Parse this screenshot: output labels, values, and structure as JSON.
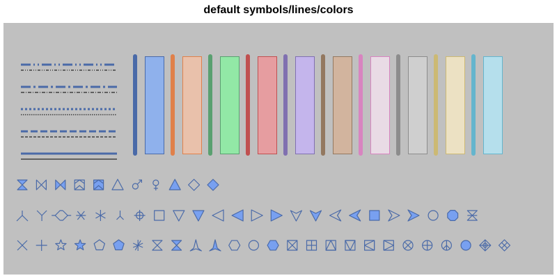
{
  "title": "default symbols/lines/colors",
  "palette": {
    "background": "#c0c0c0",
    "stroke_color": "#4a6aa8",
    "fill_color": "#78a0f0",
    "line_color": "#4a6aa8",
    "black_line": "#000000"
  },
  "line_pairs": [
    {
      "name": "dash-dot-dot",
      "thick_dash": "14 4 2 4 2 4",
      "thin_dash": "4 2 1 2 1 2"
    },
    {
      "name": "dash-dot",
      "thick_dash": "14 4 3 4",
      "thin_dash": "5 2 1 2"
    },
    {
      "name": "dot",
      "thick_dash": "3 3",
      "thin_dash": "1.5 1.5"
    },
    {
      "name": "dash",
      "thick_dash": "10 4",
      "thin_dash": "4 2"
    },
    {
      "name": "solid",
      "thick_dash": "",
      "thin_dash": ""
    }
  ],
  "colors": [
    {
      "name": "blue",
      "bar": "#4a6aa8",
      "edge": "#4a6aa8",
      "fill": "#8fb1ec"
    },
    {
      "name": "orange",
      "bar": "#e0804a",
      "edge": "#e0804a",
      "fill": "#e9c1ab"
    },
    {
      "name": "green",
      "bar": "#5aa070",
      "edge": "#5aa070",
      "fill": "#92e8a6"
    },
    {
      "name": "red",
      "bar": "#c05050",
      "edge": "#c05050",
      "fill": "#e69da0"
    },
    {
      "name": "purple",
      "bar": "#8070b0",
      "edge": "#8070b0",
      "fill": "#c4b5ec"
    },
    {
      "name": "brown",
      "bar": "#937860",
      "edge": "#937860",
      "fill": "#d2b49e"
    },
    {
      "name": "pink",
      "bar": "#d884c0",
      "edge": "#d884c0",
      "fill": "#e9dbe5"
    },
    {
      "name": "gray",
      "bar": "#8c8c8c",
      "edge": "#8c8c8c",
      "fill": "#cfcfcf"
    },
    {
      "name": "olive",
      "bar": "#ccb974",
      "edge": "#ccb974",
      "fill": "#ece1c3"
    },
    {
      "name": "cyan",
      "bar": "#64b5cd",
      "edge": "#64b5cd",
      "fill": "#b5dfec"
    }
  ],
  "symbol_rows": [
    [
      "hourglass-filled",
      "bowtie",
      "bowtie-filled",
      "envelope",
      "envelope-filled",
      "triangle",
      "male",
      "female",
      "triangle-filled",
      "diamond",
      "diamond-filled"
    ],
    [
      "tri-down-1",
      "tri-up-1",
      "diamond-split",
      "asterisk",
      "asterisk-6",
      "tri-down-small",
      "crosshair",
      "square",
      "triangle-down",
      "triangle-down-filled",
      "triangle-left",
      "triangle-left-filled",
      "triangle-right",
      "triangle-right-filled",
      "arrow-down",
      "arrow-down-filled",
      "arrow-left",
      "arrow-left-filled",
      "square-filled",
      "arrow-right",
      "arrow-right-filled",
      "circle",
      "octagon-filled",
      "hourglass-x"
    ],
    [
      "x",
      "plus",
      "star",
      "star-filled",
      "pentagon",
      "pentagon-filled",
      "star-asterisk",
      "hourglass",
      "hourglass-filled-2",
      "tripod",
      "tripod-filled",
      "hexagon",
      "circle-2",
      "hexagon-filled",
      "square-x",
      "square-plus",
      "square-triangle-up",
      "square-triangle-down",
      "square-triangle-left",
      "square-triangle-right",
      "circle-x",
      "circle-plus",
      "peace",
      "circle-filled",
      "circle-diamond-cross",
      "diamond-x"
    ]
  ]
}
